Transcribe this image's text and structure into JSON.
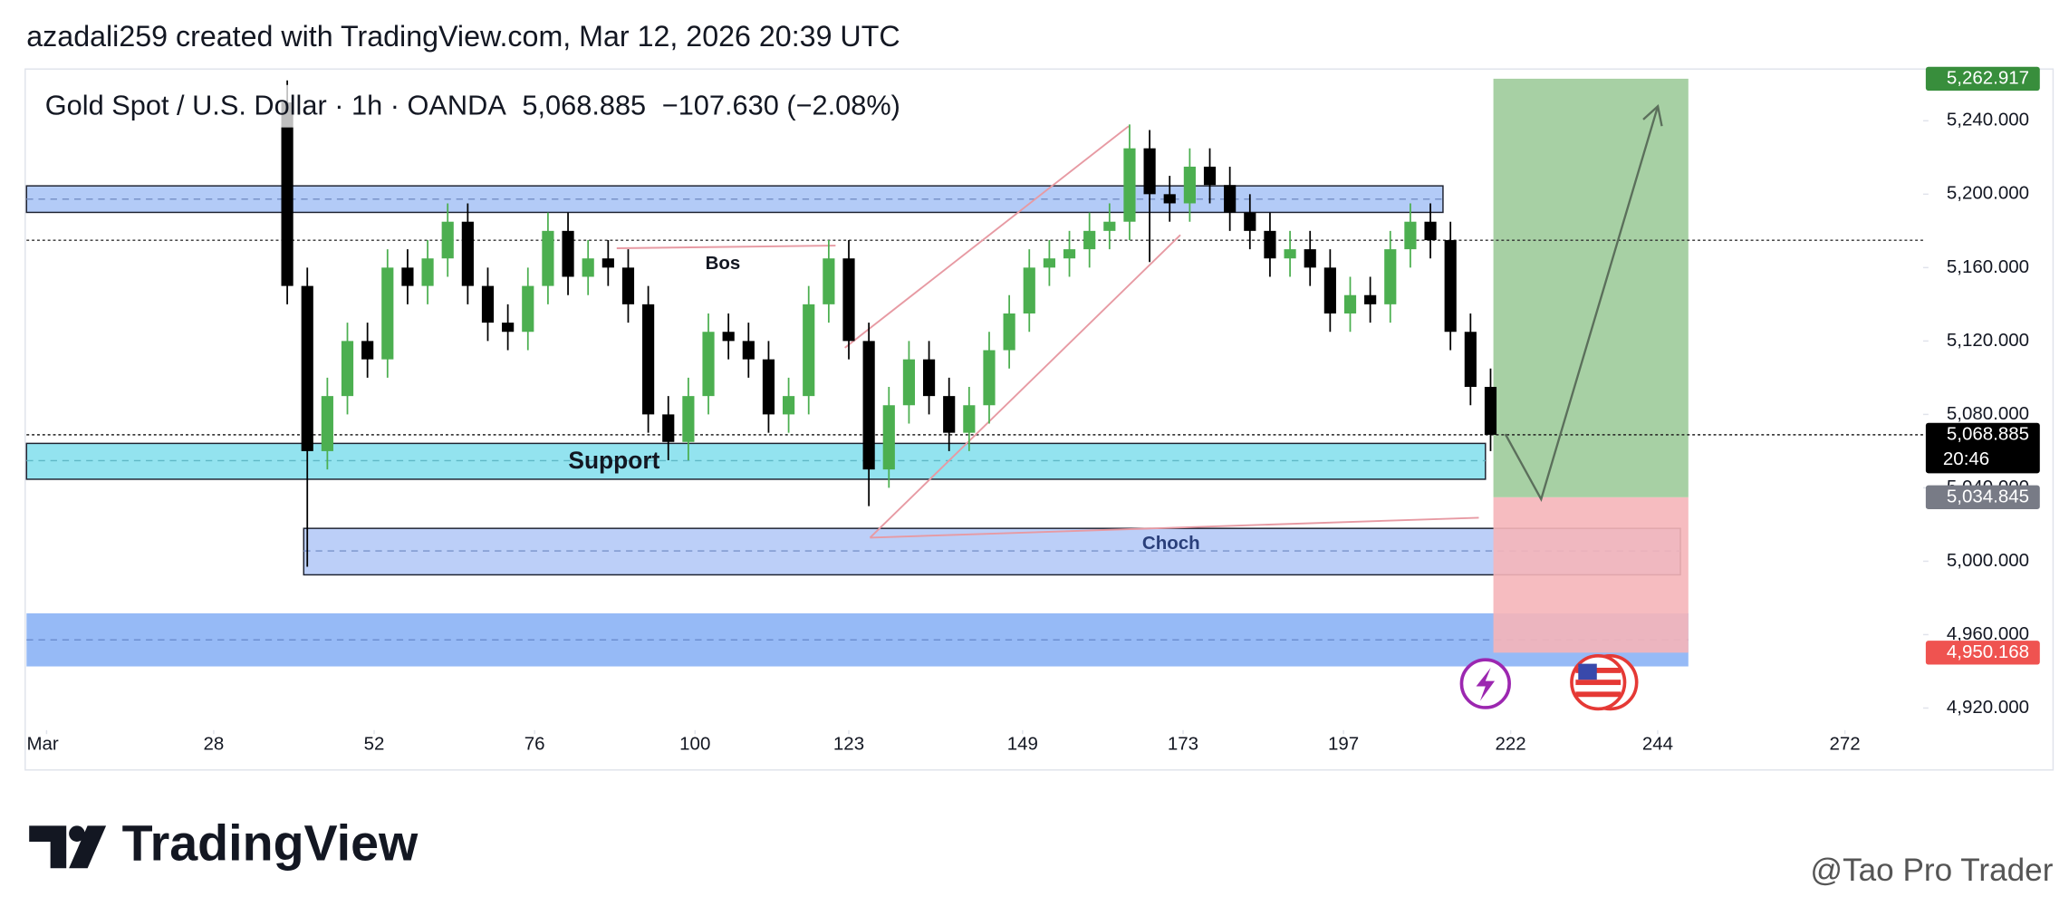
{
  "header": {
    "byline": "azadali259 created with TradingView.com, Mar 12, 2026 20:39 UTC",
    "logo": "TradingView",
    "watermark": "@Tao Pro Trader"
  },
  "chart_data": {
    "type": "candlestick",
    "title": "Gold Spot / U.S. Dollar · 1h · OANDA",
    "last_price": "5,068.885",
    "change": "−107.630 (−2.08%)",
    "countdown": "20:46",
    "annotations": [
      "Bos",
      "Support",
      "Choch"
    ],
    "up_color": "#4caf50",
    "down_color": "#000000",
    "x": [
      39,
      42,
      45,
      48,
      51,
      54,
      57,
      60,
      63,
      66,
      69,
      72,
      75,
      78,
      81,
      84,
      87,
      90,
      93,
      96,
      99,
      102,
      105,
      108,
      111,
      114,
      117,
      120,
      123,
      126,
      129,
      132,
      135,
      138,
      141,
      144,
      147,
      150,
      153,
      156,
      159,
      162,
      165,
      168,
      171,
      174,
      177,
      180,
      183,
      186,
      189,
      192,
      195,
      198,
      201,
      204,
      207,
      210,
      213,
      216,
      219
    ],
    "open": [
      5250,
      5150,
      5060,
      5090,
      5120,
      5110,
      5160,
      5150,
      5165,
      5185,
      5150,
      5130,
      5125,
      5150,
      5180,
      5155,
      5165,
      5160,
      5140,
      5080,
      5065,
      5090,
      5125,
      5120,
      5110,
      5080,
      5090,
      5140,
      5165,
      5120,
      5050,
      5085,
      5110,
      5090,
      5070,
      5085,
      5115,
      5135,
      5160,
      5165,
      5170,
      5180,
      5185,
      5225,
      5200,
      5195,
      5215,
      5205,
      5190,
      5180,
      5165,
      5170,
      5160,
      5135,
      5145,
      5140,
      5170,
      5185,
      5175,
      5125,
      5095
    ],
    "high": [
      5262,
      5160,
      5100,
      5130,
      5130,
      5170,
      5170,
      5175,
      5195,
      5195,
      5160,
      5140,
      5160,
      5190,
      5190,
      5175,
      5175,
      5170,
      5150,
      5090,
      5100,
      5135,
      5135,
      5130,
      5120,
      5100,
      5150,
      5175,
      5175,
      5130,
      5095,
      5120,
      5120,
      5100,
      5095,
      5125,
      5145,
      5170,
      5175,
      5180,
      5190,
      5195,
      5238,
      5235,
      5210,
      5225,
      5225,
      5215,
      5200,
      5190,
      5180,
      5180,
      5170,
      5155,
      5155,
      5180,
      5195,
      5195,
      5185,
      5135,
      5105
    ],
    "low": [
      5140,
      4997,
      5050,
      5080,
      5100,
      5100,
      5140,
      5140,
      5155,
      5140,
      5120,
      5115,
      5115,
      5140,
      5145,
      5145,
      5150,
      5130,
      5070,
      5055,
      5055,
      5080,
      5110,
      5100,
      5070,
      5070,
      5080,
      5130,
      5110,
      5030,
      5040,
      5075,
      5080,
      5060,
      5060,
      5075,
      5105,
      5125,
      5150,
      5155,
      5160,
      5170,
      5175,
      5163,
      5185,
      5185,
      5195,
      5180,
      5170,
      5155,
      5155,
      5150,
      5125,
      5125,
      5130,
      5130,
      5160,
      5165,
      5115,
      5085,
      5060
    ],
    "close": [
      5150,
      5060,
      5090,
      5120,
      5110,
      5160,
      5150,
      5165,
      5185,
      5150,
      5130,
      5125,
      5150,
      5180,
      5155,
      5165,
      5160,
      5140,
      5080,
      5065,
      5090,
      5125,
      5120,
      5110,
      5080,
      5090,
      5140,
      5165,
      5120,
      5050,
      5085,
      5110,
      5090,
      5070,
      5085,
      5115,
      5135,
      5160,
      5165,
      5170,
      5180,
      5185,
      5225,
      5200,
      5195,
      5215,
      5205,
      5190,
      5180,
      5165,
      5170,
      5160,
      5135,
      5145,
      5140,
      5170,
      5185,
      5175,
      5125,
      5095,
      5068.885
    ],
    "xlim": [
      0,
      283.7
    ],
    "xticks": [
      {
        "value": 3,
        "label": "Mar"
      },
      28,
      52,
      76,
      100,
      123,
      149,
      173,
      197,
      222,
      244,
      272
    ],
    "ylim": [
      4909.4,
      5268.2
    ],
    "yticks": [
      {
        "value": 5240,
        "label": "5,240.000"
      },
      {
        "value": 5200,
        "label": "5,200.000"
      },
      {
        "value": 5160,
        "label": "5,160.000"
      },
      {
        "value": 5120,
        "label": "5,120.000"
      },
      {
        "value": 5080,
        "label": "5,080.000"
      },
      {
        "value": 5040,
        "label": "5,040.000"
      },
      {
        "value": 5000,
        "label": "5,000.000"
      },
      {
        "value": 4960,
        "label": "4,960.000"
      },
      {
        "value": 4920,
        "label": "4,920.000"
      }
    ],
    "price_labels": [
      {
        "value": 5262.917,
        "label": "5,262.917",
        "color": "#388e3c"
      },
      {
        "value": 5068.885,
        "label": "5,068.885",
        "color": "#000000"
      },
      {
        "value": 5034.845,
        "label": "5,034.845",
        "color": "#787b86"
      },
      {
        "value": 4950.168,
        "label": "4,950.168",
        "color": "#ef5350"
      }
    ]
  }
}
